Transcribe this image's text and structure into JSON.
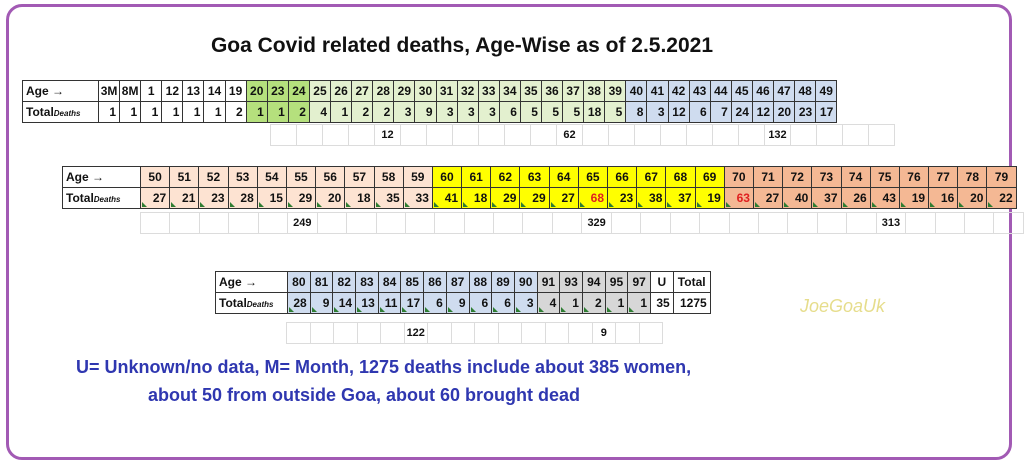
{
  "title": "Goa Covid related deaths, Age-Wise as of 2.5.2021",
  "labels": {
    "age": "Age",
    "arrow": "→",
    "total": "Total",
    "deaths": "Deaths"
  },
  "colors": {
    "border": "#a25ab4",
    "note": "#2f37b0",
    "red_value": "#e02020",
    "white": "#ffffff",
    "green": "#b5e07d",
    "lightgreen": "#e3f0cf",
    "blue": "#cfdcef",
    "peach": "#fde3d2",
    "yellow": "#ffff00",
    "salmon": "#f4b894",
    "gray": "#d7d7d7"
  },
  "tables": [
    {
      "ages": [
        "3M",
        "8M",
        "1",
        "12",
        "13",
        "14",
        "19",
        "20",
        "23",
        "24",
        "25",
        "26",
        "27",
        "28",
        "29",
        "30",
        "31",
        "32",
        "33",
        "34",
        "35",
        "36",
        "37",
        "38",
        "39",
        "40",
        "41",
        "42",
        "43",
        "44",
        "45",
        "46",
        "47",
        "48",
        "49"
      ],
      "deaths": [
        "1",
        "1",
        "1",
        "1",
        "1",
        "1",
        "2",
        "1",
        "1",
        "2",
        "4",
        "1",
        "2",
        "2",
        "3",
        "9",
        "3",
        "3",
        "3",
        "6",
        "5",
        "5",
        "5",
        "18",
        "5",
        "8",
        "3",
        "12",
        "6",
        "7",
        "24",
        "12",
        "20",
        "23",
        "17"
      ],
      "colors": [
        "white",
        "white",
        "white",
        "white",
        "white",
        "white",
        "white",
        "green",
        "green",
        "green",
        "lightgreen",
        "lightgreen",
        "lightgreen",
        "lightgreen",
        "lightgreen",
        "lightgreen",
        "lightgreen",
        "lightgreen",
        "lightgreen",
        "lightgreen",
        "lightgreen",
        "lightgreen",
        "lightgreen",
        "lightgreen",
        "lightgreen",
        "blue",
        "blue",
        "blue",
        "blue",
        "blue",
        "blue",
        "blue",
        "blue",
        "blue",
        "blue"
      ],
      "sums": [
        {
          "label": "12",
          "span": 8
        },
        {
          "label": "62",
          "span": 6
        },
        {
          "label": "132",
          "span": 10
        }
      ]
    },
    {
      "ages": [
        "50",
        "51",
        "52",
        "53",
        "54",
        "55",
        "56",
        "57",
        "58",
        "59",
        "60",
        "61",
        "62",
        "63",
        "64",
        "65",
        "66",
        "67",
        "68",
        "69",
        "70",
        "71",
        "72",
        "73",
        "74",
        "75",
        "76",
        "77",
        "78",
        "79"
      ],
      "deaths": [
        "27",
        "21",
        "23",
        "28",
        "15",
        "29",
        "20",
        "18",
        "35",
        "33",
        "41",
        "18",
        "29",
        "29",
        "27",
        "68",
        "23",
        "38",
        "37",
        "19",
        "63",
        "27",
        "40",
        "37",
        "26",
        "43",
        "19",
        "16",
        "20",
        "22"
      ],
      "colors": [
        "peach",
        "peach",
        "peach",
        "peach",
        "peach",
        "peach",
        "peach",
        "peach",
        "peach",
        "peach",
        "yellow",
        "yellow",
        "yellow",
        "yellow",
        "yellow",
        "yellow",
        "yellow",
        "yellow",
        "yellow",
        "yellow",
        "salmon",
        "salmon",
        "salmon",
        "salmon",
        "salmon",
        "salmon",
        "salmon",
        "salmon",
        "salmon",
        "salmon"
      ],
      "red": [
        "68",
        "63"
      ],
      "sums": [
        {
          "label": "249",
          "span": 10
        },
        {
          "label": "329",
          "span": 10
        },
        {
          "label": "313",
          "span": 10
        }
      ]
    },
    {
      "ages": [
        "80",
        "81",
        "82",
        "83",
        "84",
        "85",
        "86",
        "87",
        "88",
        "89",
        "90",
        "91",
        "93",
        "94",
        "95",
        "97",
        "U",
        "Total"
      ],
      "deaths": [
        "28",
        "9",
        "14",
        "13",
        "11",
        "17",
        "6",
        "9",
        "6",
        "6",
        "3",
        "4",
        "1",
        "2",
        "1",
        "1",
        "35",
        "1275"
      ],
      "colors": [
        "blue",
        "blue",
        "blue",
        "blue",
        "blue",
        "blue",
        "blue",
        "blue",
        "blue",
        "blue",
        "blue",
        "gray",
        "gray",
        "gray",
        "gray",
        "gray",
        "white",
        "white"
      ],
      "sums": [
        {
          "label": "122",
          "span": 11
        },
        {
          "label": "9",
          "span": 5
        }
      ]
    }
  ],
  "watermark": "JoeGoaUk",
  "notes": [
    "U= Unknown/no data, M= Month, 1275 deaths include about 385 women,",
    "about 50 from outside Goa, about 60 brought dead"
  ]
}
